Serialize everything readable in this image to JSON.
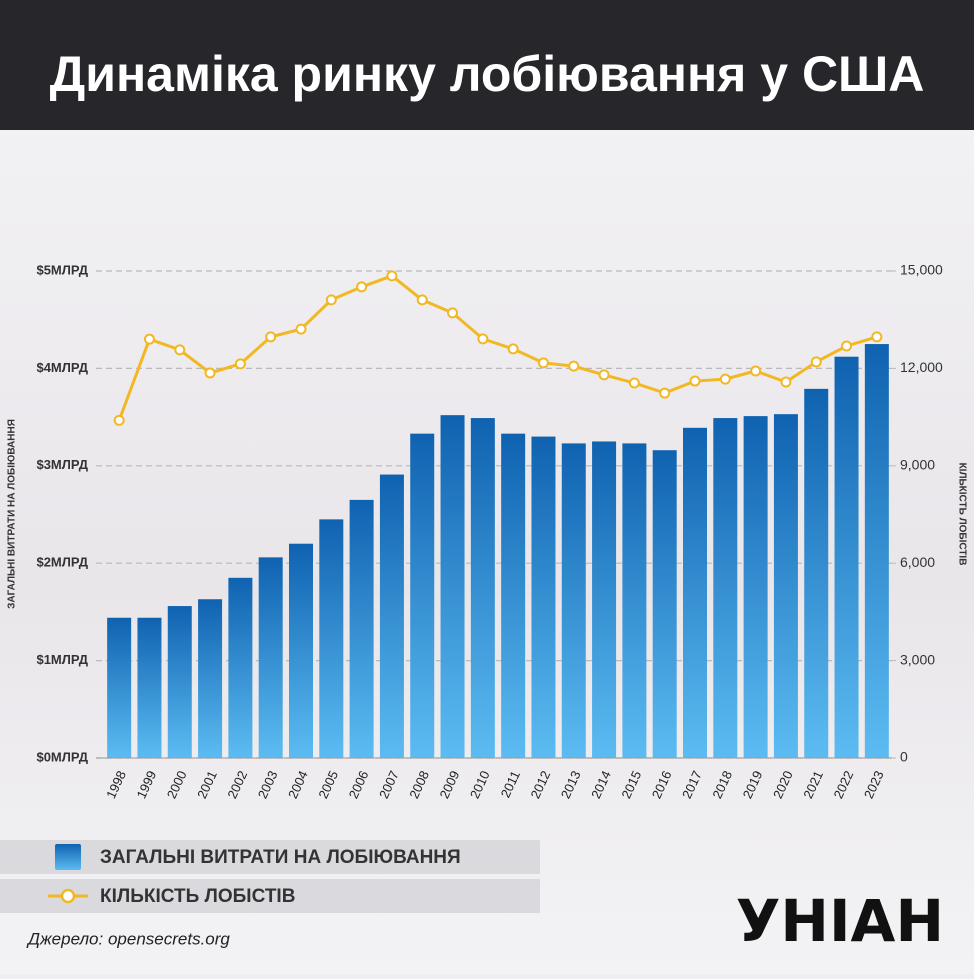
{
  "chart_data": {
    "type": "bar",
    "title": "Динаміка ринку лобіювання у США",
    "y_label": "ЗАГАЛЬНІ ВИТРАТИ НА ЛОБІЮВАННЯ",
    "y2_label": "КІЛЬКІСТЬ ЛОБІСТІВ",
    "categories": [
      "1998",
      "1999",
      "2000",
      "2001",
      "2002",
      "2003",
      "2004",
      "2005",
      "2006",
      "2007",
      "2008",
      "2009",
      "2010",
      "2011",
      "2012",
      "2013",
      "2014",
      "2015",
      "2016",
      "2017",
      "2018",
      "2019",
      "2020",
      "2021",
      "2022",
      "2023"
    ],
    "series": [
      {
        "name": "ЗАГАЛЬНІ ВИТРАТИ НА ЛОБІЮВАННЯ",
        "type": "bar",
        "color": "#0f62b0",
        "values": [
          1.44,
          1.44,
          1.56,
          1.63,
          1.85,
          2.06,
          2.2,
          2.45,
          2.65,
          2.91,
          3.33,
          3.52,
          3.49,
          3.33,
          3.3,
          3.23,
          3.25,
          3.23,
          3.16,
          3.39,
          3.49,
          3.51,
          3.53,
          3.79,
          4.12,
          4.25
        ]
      },
      {
        "name": "КІЛЬКІСТЬ ЛОБІСТІВ",
        "type": "line",
        "color": "#f2b824",
        "axis": "y2",
        "values": [
          10400,
          12900,
          12570,
          11860,
          12140,
          12970,
          13210,
          14110,
          14510,
          14850,
          14110,
          13710,
          12910,
          12600,
          12170,
          12070,
          11800,
          11550,
          11240,
          11610,
          11670,
          11920,
          11580,
          12200,
          12690,
          12970
        ]
      }
    ],
    "ylim": [
      0,
      5
    ],
    "yticks": [
      {
        "value": 0,
        "label": "$0МЛРД"
      },
      {
        "value": 1,
        "label": "$1МЛРД"
      },
      {
        "value": 2,
        "label": "$2МЛРД"
      },
      {
        "value": 3,
        "label": "$3МЛРД"
      },
      {
        "value": 4,
        "label": "$4МЛРД"
      },
      {
        "value": 5,
        "label": "$5МЛРД"
      }
    ],
    "y2lim": [
      0,
      15000
    ],
    "y2ticks": [
      0,
      {
        "value": 3000,
        "label": "3,000"
      },
      {
        "value": 6000,
        "label": "6,000"
      },
      {
        "value": 9000,
        "label": "9,000"
      },
      {
        "value": 12000,
        "label": "12,000"
      },
      {
        "value": 15000,
        "label": "15,000"
      }
    ],
    "grid": true,
    "source": "Джерело: opensecrets.org",
    "logo": "УНІАН"
  }
}
